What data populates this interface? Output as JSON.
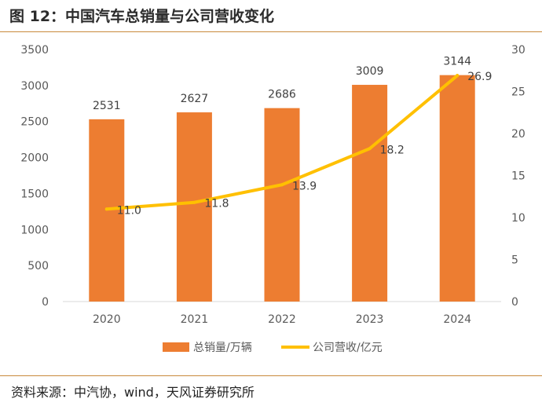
{
  "figure": {
    "title": "图 12：中国汽车总销量与公司营收变化",
    "source": "资料来源：中汽协，wind，天风证券研究所"
  },
  "colors": {
    "bar": "#ed7d31",
    "line": "#ffc000",
    "axis": "#d9d9d9",
    "text": "#595959"
  },
  "chart_data": {
    "type": "bar",
    "categories": [
      "2020",
      "2021",
      "2022",
      "2023",
      "2024"
    ],
    "series": [
      {
        "name": "总销量/万辆",
        "kind": "bar",
        "axis": "left",
        "values": [
          2531,
          2627,
          2686,
          3009,
          3144
        ],
        "labels": [
          "2531",
          "2627",
          "2686",
          "3009",
          "3144"
        ]
      },
      {
        "name": "公司营收/亿元",
        "kind": "line",
        "axis": "right",
        "values": [
          11.0,
          11.8,
          13.9,
          18.2,
          26.9
        ],
        "labels": [
          "11.0",
          "11.8",
          "13.9",
          "18.2",
          "26.9"
        ]
      }
    ],
    "ylim_left": [
      0,
      3500
    ],
    "yticks_left": [
      "0",
      "500",
      "1000",
      "1500",
      "2000",
      "2500",
      "3000",
      "3500"
    ],
    "ylim_right": [
      0,
      30
    ],
    "yticks_right": [
      "0",
      "5",
      "10",
      "15",
      "20",
      "25",
      "30"
    ],
    "legend": "bottom"
  }
}
